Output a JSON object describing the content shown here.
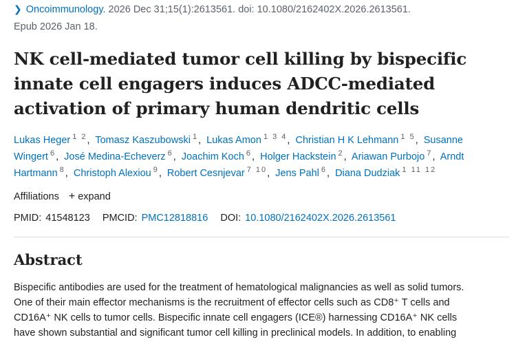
{
  "citation": {
    "journal": "Oncoimmunology.",
    "details": "2026 Dec 31;15(1):2613561. doi: 10.1080/2162402X.2026.2613561.",
    "epub": "Epub 2026 Jan 18."
  },
  "title": "NK cell-mediated tumor cell killing by bispecific innate cell engagers induces ADCC-mediated activation of primary human dendritic cells",
  "authors": [
    {
      "name": "Lukas Heger",
      "aff": "1 2"
    },
    {
      "name": "Tomasz Kaszubowski",
      "aff": "1"
    },
    {
      "name": "Lukas Amon",
      "aff": "1 3 4"
    },
    {
      "name": "Christian H K Lehmann",
      "aff": "1 5"
    },
    {
      "name": "Susanne Wingert",
      "aff": "6"
    },
    {
      "name": "José Medina-Echeverz",
      "aff": "6"
    },
    {
      "name": "Joachim Koch",
      "aff": "6"
    },
    {
      "name": "Holger Hackstein",
      "aff": "2"
    },
    {
      "name": "Ariawan Purbojo",
      "aff": "7"
    },
    {
      "name": "Arndt Hartmann",
      "aff": "8"
    },
    {
      "name": "Christoph Alexiou",
      "aff": "9"
    },
    {
      "name": "Robert Cesnjevar",
      "aff": "7 10"
    },
    {
      "name": "Jens Pahl",
      "aff": "6"
    },
    {
      "name": "Diana Dudziak",
      "aff": "1 11 12"
    }
  ],
  "affiliations": {
    "label": "Affiliations",
    "expand_label": "expand"
  },
  "ids": {
    "pmid_label": "PMID:",
    "pmid": "41548123",
    "pmcid_label": "PMCID:",
    "pmcid": "PMC12818816",
    "doi_label": "DOI:",
    "doi": "10.1080/2162402X.2026.2613561"
  },
  "abstract": {
    "heading": "Abstract",
    "lines": [
      "Bispecific antibodies are used for the treatment of hematological malignancies as well as solid tumors.",
      "One of their main effector mechanisms is the recruitment of effector cells such as CD8⁺ T cells and",
      "CD16A⁺ NK cells to tumor cells. Bispecific innate cell engagers (ICE®) harnessing CD16A⁺ NK cells",
      "have shown substantial and significant tumor cell killing in preclinical models. In addition, to enabling"
    ]
  }
}
